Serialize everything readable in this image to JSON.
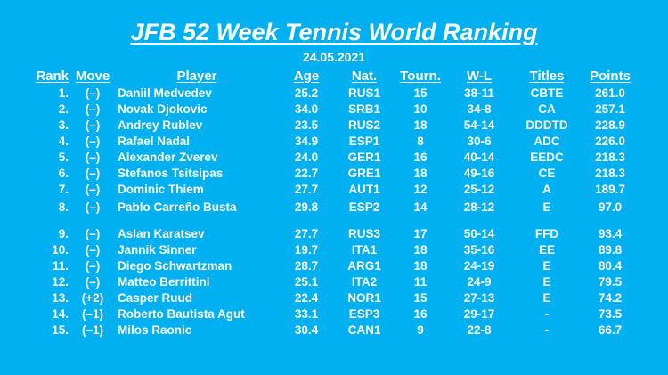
{
  "title": "JFB 52 Week Tennis World Ranking",
  "date": "24.05.2021",
  "headers": {
    "rank": "Rank",
    "move": "Move",
    "player": "Player",
    "age": "Age",
    "nat": "Nat.",
    "tourn": "Tourn.",
    "wl": "W-L",
    "titles": "Titles",
    "points": "Points"
  },
  "rows": [
    {
      "rank": "1.",
      "move": "(–)",
      "player": "Daniil Medvedev",
      "age": "25.2",
      "nat": "RUS1",
      "tourn": "15",
      "wl": "38-11",
      "titles": "CBTE",
      "points": "261.0"
    },
    {
      "rank": "2.",
      "move": "(–)",
      "player": "Novak Djokovic",
      "age": "34.0",
      "nat": "SRB1",
      "tourn": "10",
      "wl": "34-8",
      "titles": "CA",
      "points": "257.1"
    },
    {
      "rank": "3.",
      "move": "(–)",
      "player": "Andrey Rublev",
      "age": "23.5",
      "nat": "RUS2",
      "tourn": "18",
      "wl": "54-14",
      "titles": "DDDTD",
      "points": "228.9"
    },
    {
      "rank": "4.",
      "move": "(–)",
      "player": "Rafael Nadal",
      "age": "34.9",
      "nat": "ESP1",
      "tourn": "8",
      "wl": "30-6",
      "titles": "ADC",
      "points": "226.0"
    },
    {
      "rank": "5.",
      "move": "(–)",
      "player": "Alexander Zverev",
      "age": "24.0",
      "nat": "GER1",
      "tourn": "16",
      "wl": "40-14",
      "titles": "EEDC",
      "points": "218.3"
    },
    {
      "rank": "6.",
      "move": "(–)",
      "player": "Stefanos Tsitsipas",
      "age": "22.7",
      "nat": "GRE1",
      "tourn": "18",
      "wl": "49-16",
      "titles": "CE",
      "points": "218.3"
    },
    {
      "rank": "7.",
      "move": "(–)",
      "player": "Dominic Thiem",
      "age": "27.7",
      "nat": "AUT1",
      "tourn": "12",
      "wl": "25-12",
      "titles": "A",
      "points": "189.7"
    },
    {
      "rank": "8.",
      "move": "(–)",
      "player": "Pablo Carreño Busta",
      "age": "29.8",
      "nat": "ESP2",
      "tourn": "14",
      "wl": "28-12",
      "titles": "E",
      "points": "97.0"
    },
    {
      "rank": "9.",
      "move": "(–)",
      "player": "Aslan Karatsev",
      "age": "27.7",
      "nat": "RUS3",
      "tourn": "17",
      "wl": "50-14",
      "titles": "FFD",
      "points": "93.4"
    },
    {
      "rank": "10.",
      "move": "(–)",
      "player": "Jannik Sinner",
      "age": "19.7",
      "nat": "ITA1",
      "tourn": "18",
      "wl": "35-16",
      "titles": "EE",
      "points": "89.8"
    },
    {
      "rank": "11.",
      "move": "(–)",
      "player": "Diego Schwartzman",
      "age": "28.7",
      "nat": "ARG1",
      "tourn": "18",
      "wl": "24-19",
      "titles": "E",
      "points": "80.4"
    },
    {
      "rank": "12.",
      "move": "(–)",
      "player": "Matteo Berrittini",
      "age": "25.1",
      "nat": "ITA2",
      "tourn": "11",
      "wl": "24-9",
      "titles": "E",
      "points": "79.5"
    },
    {
      "rank": "13.",
      "move": "(+2)",
      "player": "Casper Ruud",
      "age": "22.4",
      "nat": "NOR1",
      "tourn": "15",
      "wl": "27-13",
      "titles": "E",
      "points": "74.2"
    },
    {
      "rank": "14.",
      "move": "(–1)",
      "player": "Roberto Bautista Agut",
      "age": "33.1",
      "nat": "ESP3",
      "tourn": "16",
      "wl": "29-17",
      "titles": "-",
      "points": "73.5"
    },
    {
      "rank": "15.",
      "move": "(–1)",
      "player": "Milos Raonic",
      "age": "30.4",
      "nat": "CAN1",
      "tourn": "9",
      "wl": "22-8",
      "titles": "-",
      "points": "66.7"
    }
  ]
}
